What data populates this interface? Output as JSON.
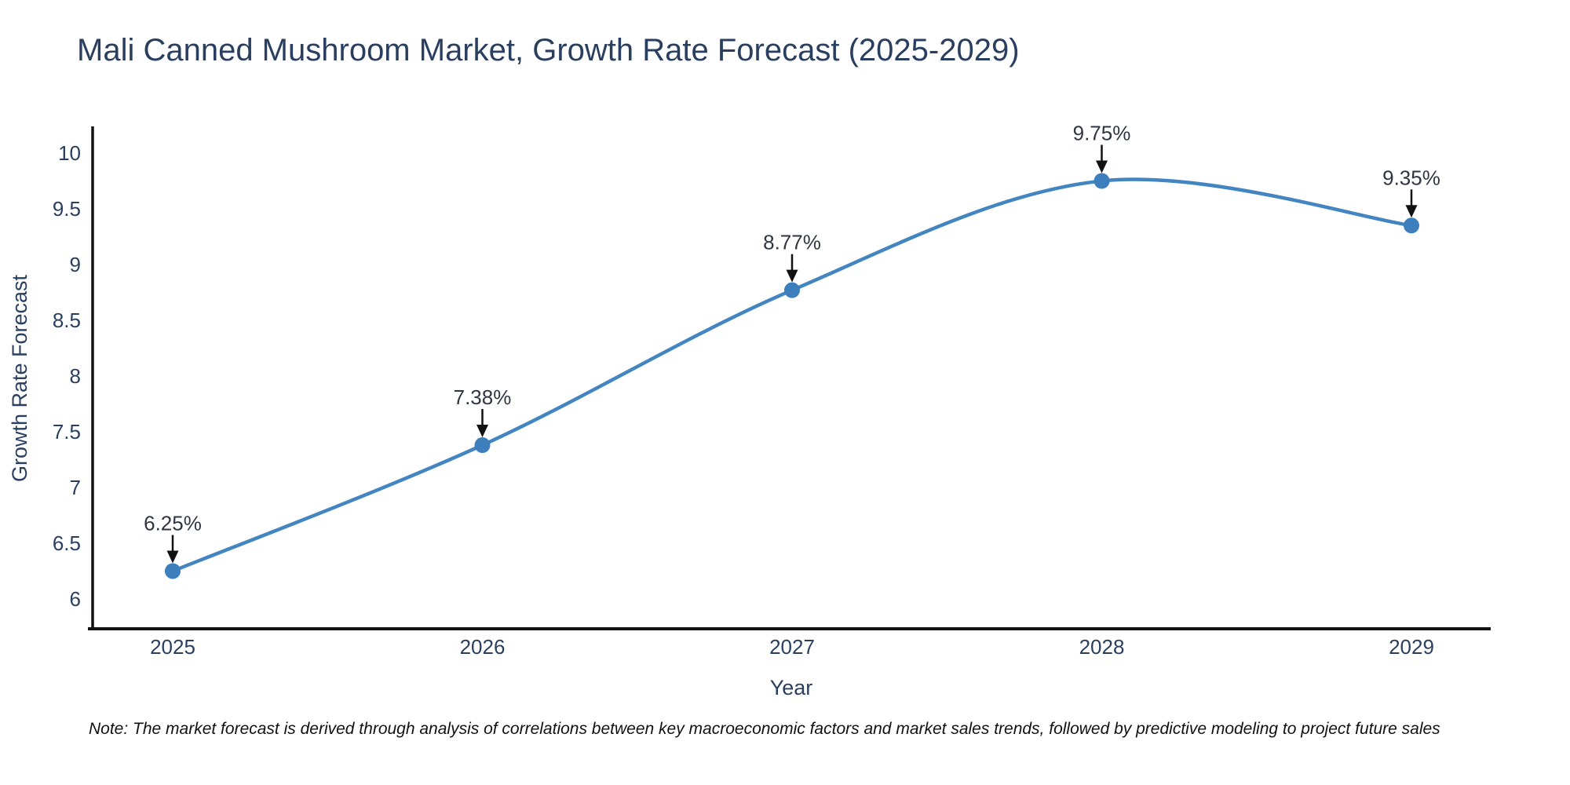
{
  "page": {
    "title": "Mali Canned Mushroom Market, Growth Rate Forecast (2025-2029)",
    "note": "Note: The market forecast is derived through analysis of correlations between key macroeconomic factors and market sales trends, followed by predictive modeling to project future sales"
  },
  "chart_data": {
    "type": "line",
    "title": "Mali Canned Mushroom Market, Growth Rate Forecast (2025-2029)",
    "xlabel": "Year",
    "ylabel": "Growth Rate Forecast",
    "categories": [
      "2025",
      "2026",
      "2027",
      "2028",
      "2029"
    ],
    "values": [
      6.25,
      7.38,
      8.77,
      9.75,
      9.35
    ],
    "point_labels": [
      "6.25%",
      "7.38%",
      "8.77%",
      "9.75%",
      "9.35%"
    ],
    "yticks": [
      6,
      6.5,
      7,
      7.5,
      8,
      8.5,
      9,
      9.5,
      10
    ],
    "ylim": [
      5.73,
      10.24
    ],
    "xlim": [
      2024.73,
      2029.26
    ],
    "grid": false,
    "legend": false,
    "line_shape": "spline",
    "marker": "circle",
    "annotation_arrows": true,
    "colors": {
      "line": "#4285c0",
      "marker": "#3d7ebd",
      "axis": "#111111",
      "arrow": "#111111",
      "text": "#2a3f5f",
      "annotation": "#2f3542",
      "note_text": "#111111",
      "background": "#ffffff"
    }
  }
}
